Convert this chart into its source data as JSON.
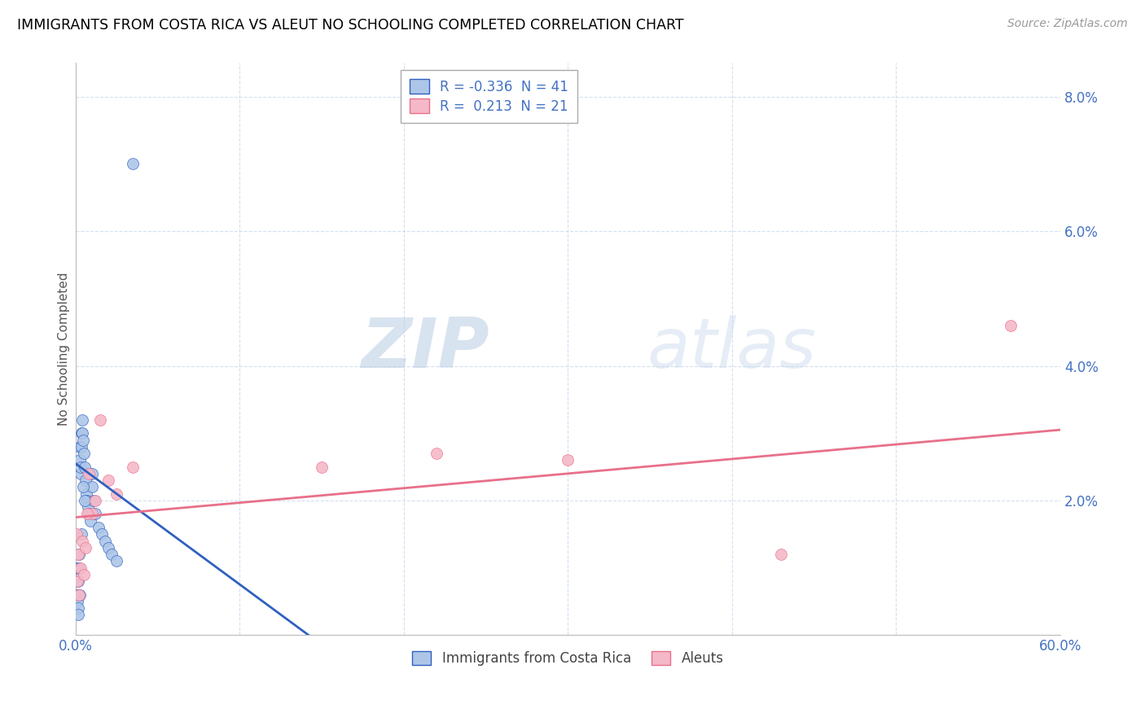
{
  "title": "IMMIGRANTS FROM COSTA RICA VS ALEUT NO SCHOOLING COMPLETED CORRELATION CHART",
  "source": "Source: ZipAtlas.com",
  "ylabel": "No Schooling Completed",
  "xlim": [
    0.0,
    60.0
  ],
  "ylim": [
    0.0,
    8.5
  ],
  "r_blue": -0.336,
  "n_blue": 41,
  "r_pink": 0.213,
  "n_pink": 21,
  "legend_label_blue": "Immigrants from Costa Rica",
  "legend_label_pink": "Aleuts",
  "color_blue": "#adc6e8",
  "color_pink": "#f5b8c8",
  "line_color_blue": "#3060c0",
  "line_color_pink": "#e8708a",
  "watermark_zip": "ZIP",
  "watermark_atlas": "atlas",
  "watermark_color": "#c8d8ec",
  "blue_x": [
    0.05,
    0.08,
    0.1,
    0.12,
    0.15,
    0.18,
    0.2,
    0.22,
    0.25,
    0.28,
    0.3,
    0.32,
    0.35,
    0.38,
    0.4,
    0.42,
    0.45,
    0.5,
    0.55,
    0.6,
    0.65,
    0.7,
    0.75,
    0.8,
    0.9,
    1.0,
    1.1,
    1.2,
    1.4,
    1.6,
    1.8,
    2.0,
    2.2,
    2.5,
    0.15,
    0.25,
    0.35,
    0.45,
    0.55,
    1.0,
    3.5
  ],
  "blue_y": [
    1.0,
    0.8,
    0.6,
    0.5,
    0.4,
    0.8,
    1.0,
    1.2,
    2.8,
    2.6,
    2.4,
    2.5,
    2.8,
    3.0,
    3.2,
    3.0,
    2.9,
    2.7,
    2.5,
    2.3,
    2.1,
    2.0,
    1.9,
    1.8,
    1.7,
    2.2,
    2.0,
    1.8,
    1.6,
    1.5,
    1.4,
    1.3,
    1.2,
    1.1,
    0.3,
    0.6,
    1.5,
    2.2,
    2.0,
    2.4,
    7.0
  ],
  "pink_x": [
    0.05,
    0.1,
    0.15,
    0.2,
    0.3,
    0.4,
    0.5,
    0.6,
    0.8,
    1.0,
    1.5,
    2.0,
    2.5,
    3.5,
    15.0,
    22.0,
    30.0,
    43.0,
    0.7,
    1.2,
    57.0
  ],
  "pink_y": [
    1.5,
    0.8,
    1.2,
    0.6,
    1.0,
    1.4,
    0.9,
    1.3,
    2.4,
    1.8,
    3.2,
    2.3,
    2.1,
    2.5,
    2.5,
    2.7,
    2.6,
    1.2,
    1.8,
    2.0,
    4.6
  ],
  "blue_line_x": [
    0.0,
    14.2
  ],
  "blue_line_y": [
    2.55,
    0.0
  ],
  "pink_line_x": [
    0.0,
    60.0
  ],
  "pink_line_y": [
    1.75,
    3.05
  ]
}
